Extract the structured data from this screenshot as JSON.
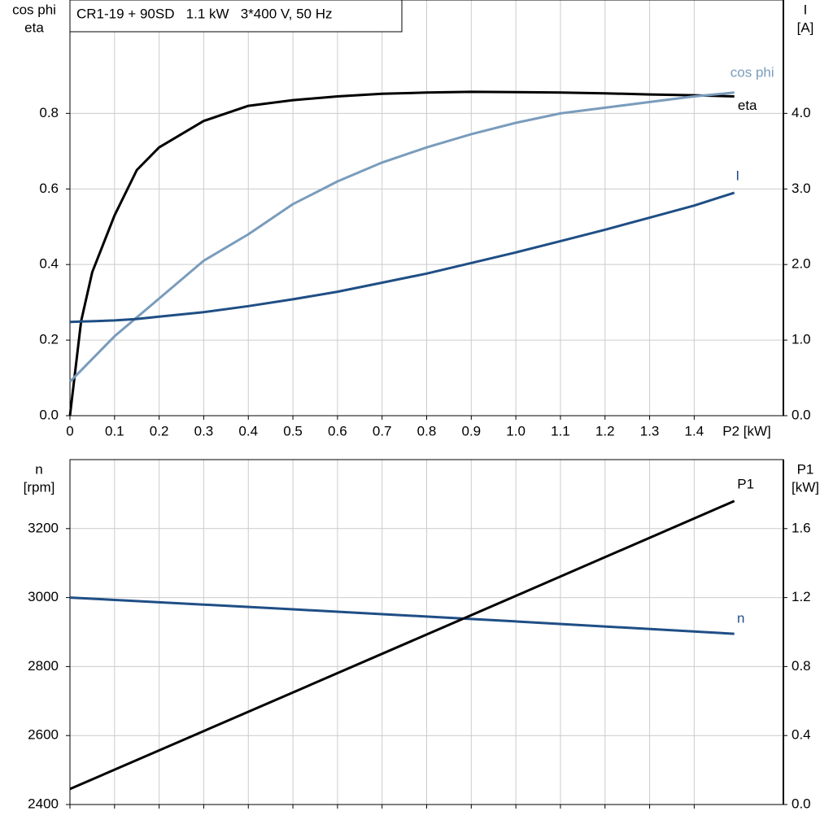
{
  "chart_data": [
    {
      "type": "line",
      "title": "CR1-19 + 90SD   1.1 kW   3*400 V, 50 Hz",
      "xlabel": "P2 [kW]",
      "ylabel": [
        "cos phi",
        "eta"
      ],
      "y2label": [
        "I",
        "[A]"
      ],
      "x": [
        0,
        0.025,
        0.05,
        0.1,
        0.15,
        0.2,
        0.3,
        0.4,
        0.5,
        0.6,
        0.7,
        0.8,
        0.9,
        1.0,
        1.1,
        1.2,
        1.3,
        1.4,
        1.49
      ],
      "series": [
        {
          "name": "eta",
          "color": "#000000",
          "values": [
            0,
            0.25,
            0.38,
            0.53,
            0.65,
            0.71,
            0.78,
            0.82,
            0.835,
            0.845,
            0.852,
            0.855,
            0.857,
            0.856,
            0.855,
            0.853,
            0.85,
            0.848,
            0.845
          ]
        },
        {
          "name": "cos phi",
          "color": "#7a9cbc",
          "values": [
            0.09,
            0.12,
            0.15,
            0.21,
            0.26,
            0.31,
            0.41,
            0.48,
            0.56,
            0.62,
            0.67,
            0.71,
            0.745,
            0.775,
            0.8,
            0.815,
            0.83,
            0.845,
            0.855
          ]
        },
        {
          "name": "I",
          "color": "#1f4e85",
          "axis": "y2",
          "values": [
            1.24,
            1.245,
            1.25,
            1.26,
            1.28,
            1.31,
            1.37,
            1.45,
            1.54,
            1.64,
            1.76,
            1.88,
            2.02,
            2.16,
            2.31,
            2.46,
            2.62,
            2.78,
            2.95
          ]
        }
      ],
      "xlim": [
        0,
        1.6
      ],
      "xticks": [
        0,
        0.1,
        0.2,
        0.3,
        0.4,
        0.5,
        0.6,
        0.7,
        0.8,
        0.9,
        {
          "value": 1.0,
          "label": "1.0"
        },
        1.1,
        1.2,
        1.3,
        1.4
      ],
      "xtick_labels": true,
      "ylim": [
        0,
        1.1
      ],
      "yticks": [
        {
          "value": 0,
          "label": "0.0"
        },
        0.2,
        0.4,
        0.6,
        0.8
      ],
      "y2lim": [
        0,
        5.5
      ],
      "y2ticks": [
        {
          "value": 0,
          "label": "0.0"
        },
        {
          "value": 1,
          "label": "1.0"
        },
        {
          "value": 2,
          "label": "2.0"
        },
        {
          "value": 3,
          "label": "3.0"
        },
        {
          "value": 4,
          "label": "4.0"
        }
      ],
      "grid": true
    },
    {
      "type": "line",
      "ylabel": [
        "n",
        "[rpm]"
      ],
      "y2label": [
        "P1",
        "[kW]"
      ],
      "x": [
        0,
        0.5,
        1.0,
        1.49
      ],
      "series": [
        {
          "name": "n",
          "color": "#1f4e85",
          "values": [
            3000,
            2966,
            2931,
            2895
          ]
        },
        {
          "name": "P1",
          "color": "#000000",
          "axis": "y2",
          "values": [
            0.09,
            0.65,
            1.21,
            1.76
          ]
        }
      ],
      "xlim": [
        0,
        1.6
      ],
      "xticks": [
        0,
        0.1,
        0.2,
        0.3,
        0.4,
        0.5,
        0.6,
        0.7,
        0.8,
        0.9,
        1.0,
        1.1,
        1.2,
        1.3,
        1.4
      ],
      "xtick_labels": false,
      "ylim": [
        2400,
        3400
      ],
      "yticks": [
        2400,
        2600,
        2800,
        3000,
        3200
      ],
      "y2lim": [
        0,
        2
      ],
      "y2ticks": [
        {
          "value": 0,
          "label": "0.0"
        },
        0.4,
        0.8,
        1.2,
        1.6
      ],
      "grid": true
    }
  ]
}
